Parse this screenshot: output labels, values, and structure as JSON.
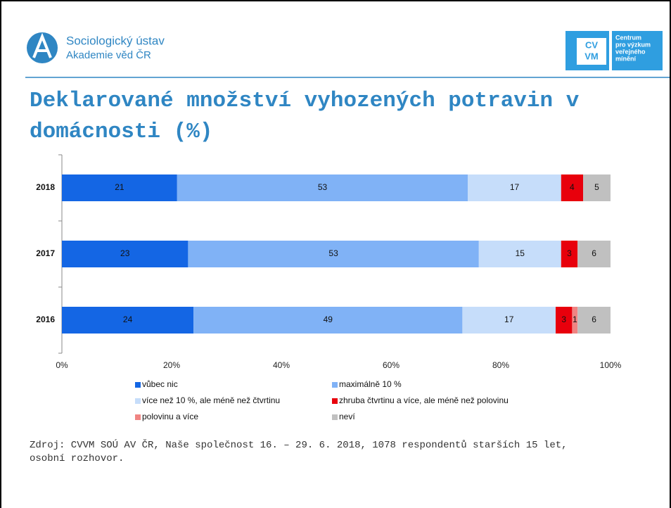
{
  "header": {
    "org": "Sociologický ústav",
    "org_sub": "Akademie věd ČR",
    "logo_top": "CV",
    "logo_bottom": "VM",
    "logo_lines": [
      "Centrum",
      "pro výzkum",
      "veřejného",
      "mínění"
    ]
  },
  "chart_data": {
    "type": "stacked_bar_horizontal",
    "title": "Deklarované množství vyhozených potravin v domácnosti (%)",
    "categories": [
      "2018",
      "2017",
      "2016"
    ],
    "series": [
      {
        "name": "vůbec nic",
        "color": "#1466e4",
        "values": [
          21,
          23,
          24
        ]
      },
      {
        "name": "maximálně 10 %",
        "color": "#80b2f6",
        "values": [
          53,
          53,
          49
        ]
      },
      {
        "name": "více než 10 %, ale méně než čtvrtinu",
        "color": "#c6ddfa",
        "values": [
          17,
          15,
          17
        ]
      },
      {
        "name": "zhruba čtvrtinu a více, ale méně než polovinu",
        "color": "#e8000c",
        "values": [
          4,
          3,
          3
        ]
      },
      {
        "name": "polovinu a více",
        "color": "#f08482",
        "values": [
          0,
          0,
          1
        ]
      },
      {
        "name": "neví",
        "color": "#c0c0c0",
        "values": [
          5,
          6,
          6
        ]
      }
    ],
    "xlim": [
      0,
      100
    ],
    "xticks": [
      {
        "value": 0,
        "label": "0%"
      },
      {
        "value": 20,
        "label": "20%"
      },
      {
        "value": 40,
        "label": "40%"
      },
      {
        "value": 60,
        "label": "60%"
      },
      {
        "value": 80,
        "label": "80%"
      },
      {
        "value": 100,
        "label": "100%"
      }
    ],
    "source": "Zdroj: CVVM SOÚ AV ČR, Naše společnost 16. – 29. 6. 2018, 1078 respondentů starších 15 let, osobní rozhovor."
  }
}
